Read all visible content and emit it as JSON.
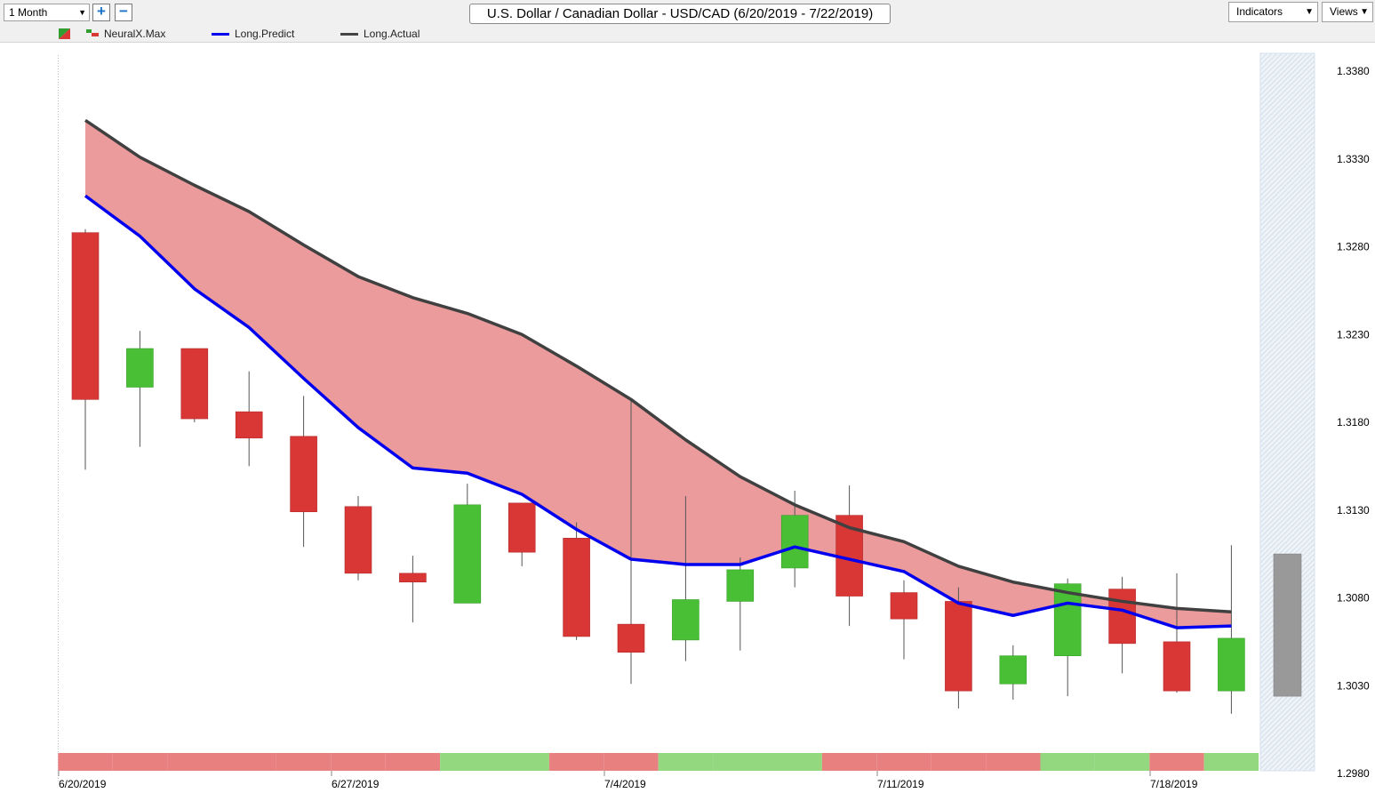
{
  "toolbar": {
    "period": "1 Month",
    "zoom_in": "+",
    "zoom_out": "−",
    "title": "U.S. Dollar / Canadian Dollar - USD/CAD (6/20/2019 - 7/22/2019)",
    "indicators_label": "Indicators",
    "views_label": "Views",
    "dropdown_arrow": "▼"
  },
  "legend": {
    "flag_icon": "neuralx-flag-icon",
    "items": [
      {
        "label": "NeuralX.Max",
        "color": "#2f9e2f"
      },
      {
        "label": "Long.Predict",
        "color": "#0000ee"
      },
      {
        "label": "Long.Actual",
        "color": "#444444"
      }
    ]
  },
  "colors": {
    "bull": "#48bf35",
    "bear": "#d93636",
    "band_fill": "#eb9b9b",
    "predict_line": "#0000ee",
    "actual_line": "#404040",
    "strip_red": "#e88080",
    "strip_green": "#93d87f",
    "forecast_gray": "#999999"
  },
  "chart_data": {
    "type": "candlestick",
    "title": "U.S. Dollar / Canadian Dollar - USD/CAD (6/20/2019 - 7/22/2019)",
    "y_range": [
      1.298,
      1.34
    ],
    "y_ticks": [
      "1.3380",
      "1.3330",
      "1.3280",
      "1.3230",
      "1.3180",
      "1.3130",
      "1.3080",
      "1.3030",
      "1.2980"
    ],
    "x_ticks": [
      {
        "label": "6/20/2019",
        "index": 0
      },
      {
        "label": "6/27/2019",
        "index": 5
      },
      {
        "label": "7/4/2019",
        "index": 10
      },
      {
        "label": "7/11/2019",
        "index": 15
      },
      {
        "label": "7/18/2019",
        "index": 20
      }
    ],
    "candles": [
      {
        "open": 1.3288,
        "high": 1.329,
        "low": 1.3153,
        "close": 1.3193
      },
      {
        "open": 1.32,
        "high": 1.3232,
        "low": 1.3166,
        "close": 1.3222
      },
      {
        "open": 1.3222,
        "high": 1.3222,
        "low": 1.318,
        "close": 1.3182
      },
      {
        "open": 1.3186,
        "high": 1.3209,
        "low": 1.3155,
        "close": 1.3171
      },
      {
        "open": 1.3172,
        "high": 1.3195,
        "low": 1.3109,
        "close": 1.3129
      },
      {
        "open": 1.3132,
        "high": 1.3138,
        "low": 1.309,
        "close": 1.3094
      },
      {
        "open": 1.3094,
        "high": 1.3104,
        "low": 1.3066,
        "close": 1.3089
      },
      {
        "open": 1.3077,
        "high": 1.3145,
        "low": 1.3077,
        "close": 1.3133
      },
      {
        "open": 1.3134,
        "high": 1.3134,
        "low": 1.3098,
        "close": 1.3106
      },
      {
        "open": 1.3114,
        "high": 1.3123,
        "low": 1.3056,
        "close": 1.3058
      },
      {
        "open": 1.3065,
        "high": 1.3193,
        "low": 1.3031,
        "close": 1.3049
      },
      {
        "open": 1.3056,
        "high": 1.3138,
        "low": 1.3044,
        "close": 1.3079
      },
      {
        "open": 1.3078,
        "high": 1.3103,
        "low": 1.305,
        "close": 1.3096
      },
      {
        "open": 1.3097,
        "high": 1.3141,
        "low": 1.3086,
        "close": 1.3127
      },
      {
        "open": 1.3127,
        "high": 1.3144,
        "low": 1.3064,
        "close": 1.3081
      },
      {
        "open": 1.3083,
        "high": 1.309,
        "low": 1.3045,
        "close": 1.3068
      },
      {
        "open": 1.3078,
        "high": 1.3086,
        "low": 1.3017,
        "close": 1.3027
      },
      {
        "open": 1.3031,
        "high": 1.3053,
        "low": 1.3022,
        "close": 1.3047
      },
      {
        "open": 1.3047,
        "high": 1.3091,
        "low": 1.3024,
        "close": 1.3088
      },
      {
        "open": 1.3085,
        "high": 1.3092,
        "low": 1.3037,
        "close": 1.3054
      },
      {
        "open": 1.3055,
        "high": 1.3094,
        "low": 1.3026,
        "close": 1.3027
      },
      {
        "open": 1.3027,
        "high": 1.311,
        "low": 1.3014,
        "close": 1.3057
      }
    ],
    "forecast_bar": {
      "top": 1.3105,
      "bottom": 1.3024
    },
    "series": [
      {
        "name": "Long.Predict",
        "values": [
          1.3309,
          1.3286,
          1.3256,
          1.3234,
          1.3205,
          1.3177,
          1.3154,
          1.3151,
          1.3139,
          1.3119,
          1.3102,
          1.3099,
          1.3099,
          1.3109,
          1.3102,
          1.3095,
          1.3077,
          1.307,
          1.3077,
          1.3073,
          1.3063,
          1.3064
        ]
      },
      {
        "name": "Long.Actual",
        "values": [
          1.3352,
          1.3331,
          1.3315,
          1.33,
          1.3281,
          1.3263,
          1.3251,
          1.3242,
          1.323,
          1.3212,
          1.3193,
          1.317,
          1.3149,
          1.3133,
          1.312,
          1.3112,
          1.3098,
          1.3089,
          1.3083,
          1.3078,
          1.3074,
          1.3072
        ]
      }
    ],
    "signal_strip": [
      "red",
      "red",
      "red",
      "red",
      "red",
      "red",
      "red",
      "green",
      "green",
      "red",
      "red",
      "green",
      "green",
      "green",
      "red",
      "red",
      "red",
      "red",
      "green",
      "green",
      "red",
      "green"
    ]
  }
}
